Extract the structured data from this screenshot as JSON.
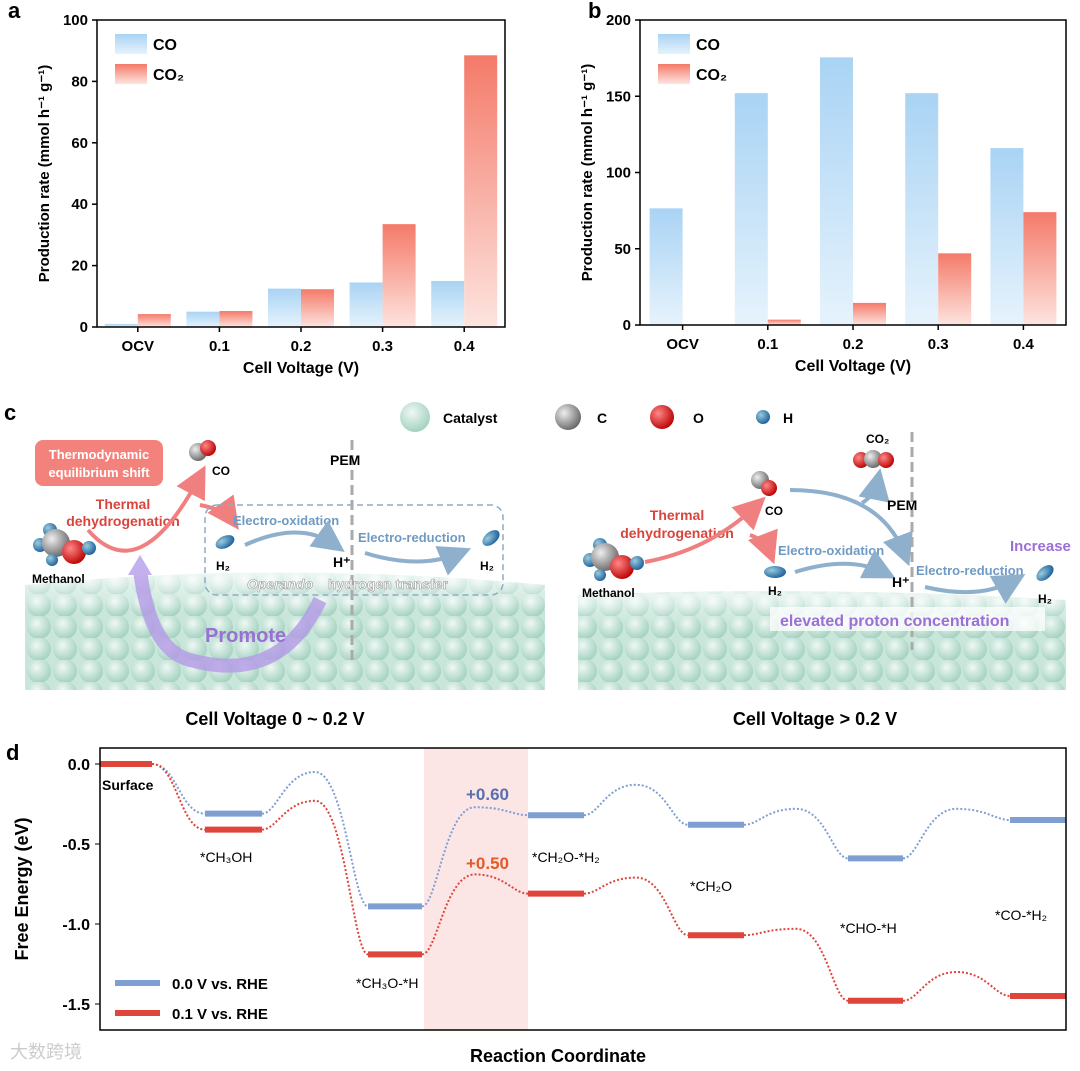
{
  "chart_data": [
    {
      "panel": "a",
      "type": "bar",
      "xlabel": "Cell Voltage (V)",
      "ylabel": "Production rate (mmol h⁻¹ g⁻¹)",
      "ylim": [
        0,
        100
      ],
      "yticks": [
        0,
        20,
        40,
        60,
        80,
        100
      ],
      "categories": [
        "OCV",
        "0.1",
        "0.2",
        "0.3",
        "0.4"
      ],
      "series": [
        {
          "name": "CO",
          "values": [
            1,
            5,
            12.5,
            14.5,
            15
          ]
        },
        {
          "name": "CO₂",
          "values": [
            4.2,
            5.2,
            12.3,
            33.5,
            88.5
          ]
        }
      ],
      "legend": "top-left"
    },
    {
      "panel": "b",
      "type": "bar",
      "xlabel": "Cell Voltage (V)",
      "ylabel": "Production rate (mmol h⁻¹ g⁻¹)",
      "ylim": [
        0,
        200
      ],
      "yticks": [
        0,
        50,
        100,
        150,
        200
      ],
      "categories": [
        "OCV",
        "0.1",
        "0.2",
        "0.3",
        "0.4"
      ],
      "series": [
        {
          "name": "CO",
          "values": [
            76.5,
            152,
            175.5,
            152,
            116
          ]
        },
        {
          "name": "CO₂",
          "values": [
            0,
            3.5,
            14.5,
            47,
            74
          ]
        }
      ],
      "legend": "top-left"
    },
    {
      "panel": "d",
      "type": "line",
      "xlabel": "Reaction Coordinate",
      "ylabel": "Free Energy (eV)",
      "ylim": [
        -1.65,
        0.1
      ],
      "yticks": [
        "0.0",
        "-0.5",
        "-1.0",
        "-1.5"
      ],
      "states": [
        "Surface",
        "*CH₃OH",
        "*CH₃O-*H",
        "*CH₂O-*H₂",
        "*CH₂O",
        "*CHO-*H",
        "*CO-*H₂"
      ],
      "series": [
        {
          "name": "0.0 V vs. RHE",
          "levels": [
            0,
            -0.31,
            -0.89,
            -0.32,
            -0.38,
            -0.59,
            -0.35
          ],
          "ts": [
            -0.05,
            -0.27,
            -0.13,
            -0.28,
            -0.28
          ]
        },
        {
          "name": "0.1 V vs. RHE",
          "levels": [
            0,
            -0.41,
            -1.19,
            -0.81,
            -1.07,
            -1.48,
            -1.45
          ],
          "ts": [
            -0.23,
            -0.69,
            -0.71,
            -1.03,
            -1.3
          ]
        }
      ],
      "annotations": [
        "+0.60",
        "+0.50"
      ],
      "legend": "bottom-left"
    }
  ],
  "colors": {
    "co": "#8fc5ef",
    "co2": "#f26b5b",
    "blue": "#7f9fd3",
    "red": "#e0453c",
    "purple": "#9b6fd6"
  },
  "panel_c": {
    "label": "c",
    "legend": [
      "Catalyst",
      "C",
      "O",
      "H"
    ],
    "left": {
      "box": "Thermodynamic",
      "box2": "equilibrium shift",
      "co": "CO",
      "thermal": "Thermal",
      "dehyd": "dehydrogenation",
      "methanol": "Methanol",
      "h2a": "H₂",
      "eox": "Electro-oxidation",
      "hplus": "H⁺",
      "ered": "Electro-reduction",
      "h2b": "H₂",
      "pem": "PEM",
      "operando": "Operando",
      "transfer": "hydrogen transfer",
      "promote": "Promote",
      "caption": "Cell Voltage 0 ~ 0.2 V"
    },
    "right": {
      "co2": "CO₂",
      "co": "CO",
      "pem": "PEM",
      "thermal": "Thermal",
      "dehyd": "dehydrogenation",
      "methanol": "Methanol",
      "eox": "Electro-oxidation",
      "h2a": "H₂",
      "hplus": "H⁺",
      "ered": "Electro-reduction",
      "increase": "Increase",
      "h2b": "H₂",
      "elevated": "elevated proton concentration",
      "caption": "Cell Voltage > 0.2 V"
    }
  },
  "watermark": "大数跨境"
}
